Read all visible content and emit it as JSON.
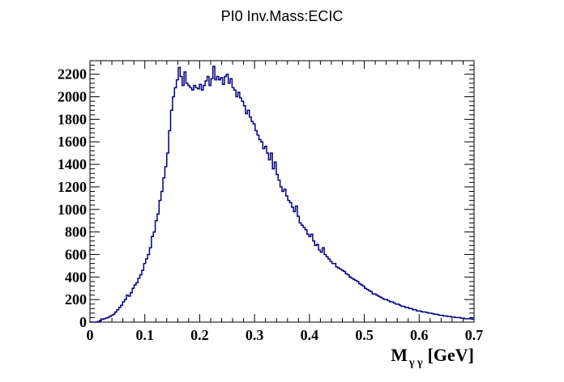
{
  "chart_data": {
    "type": "histogram",
    "title": "PI0 Inv.Mass:ECIC",
    "xlabel": "M_γ γ [GeV]",
    "xlabel_parts": {
      "main": "M",
      "sub": "γ γ",
      "unit": "[GeV]"
    },
    "ylabel": "",
    "xlim": [
      0,
      0.7
    ],
    "ylim": [
      0,
      2320
    ],
    "grid": false,
    "line_color": "#000080",
    "x_ticks": [
      0,
      0.1,
      0.2,
      0.3,
      0.4,
      0.5,
      0.6,
      0.7
    ],
    "x_tick_labels": [
      "0",
      "0.1",
      "0.2",
      "0.3",
      "0.4",
      "0.5",
      "0.6",
      "0.7"
    ],
    "y_ticks": [
      0,
      200,
      400,
      600,
      800,
      1000,
      1200,
      1400,
      1600,
      1800,
      2000,
      2200
    ],
    "y_tick_labels": [
      "0",
      "200",
      "400",
      "600",
      "800",
      "1000",
      "1200",
      "1400",
      "1600",
      "1800",
      "2000",
      "2200"
    ],
    "bin_width": 0.0035,
    "bin_start": 0,
    "values": [
      0,
      0,
      0,
      0,
      5,
      15,
      25,
      30,
      35,
      40,
      50,
      60,
      70,
      90,
      110,
      130,
      150,
      180,
      200,
      240,
      230,
      260,
      300,
      330,
      350,
      390,
      420,
      460,
      520,
      560,
      600,
      660,
      760,
      800,
      900,
      960,
      1080,
      1160,
      1280,
      1380,
      1500,
      1700,
      1880,
      2000,
      2080,
      2150,
      2260,
      2180,
      2100,
      2220,
      2120,
      2100,
      2080,
      2060,
      2100,
      2080,
      2070,
      2110,
      2060,
      2100,
      2140,
      2180,
      2100,
      2160,
      2270,
      2150,
      2180,
      2150,
      2170,
      2110,
      2180,
      2200,
      2120,
      2160,
      2080,
      2060,
      2000,
      2040,
      1990,
      1960,
      1920,
      1850,
      1880,
      1820,
      1780,
      1760,
      1700,
      1660,
      1620,
      1600,
      1540,
      1560,
      1500,
      1440,
      1500,
      1360,
      1420,
      1310,
      1260,
      1200,
      1160,
      1180,
      1120,
      1080,
      1060,
      1020,
      980,
      1030,
      940,
      880,
      860,
      840,
      820,
      780,
      760,
      780,
      720,
      680,
      690,
      640,
      620,
      660,
      600,
      580,
      560,
      540,
      520,
      520,
      490,
      480,
      470,
      460,
      450,
      430,
      420,
      400,
      390,
      380,
      370,
      360,
      340,
      330,
      320,
      300,
      290,
      280,
      270,
      250,
      250,
      240,
      230,
      220,
      210,
      200,
      200,
      190,
      180,
      180,
      170,
      160,
      160,
      150,
      140,
      140,
      130,
      130,
      120,
      120,
      110,
      110,
      100,
      100,
      95,
      90,
      90,
      85,
      80,
      80,
      75,
      70,
      70,
      65,
      60,
      60,
      55,
      55,
      50,
      50,
      45,
      45,
      40,
      40,
      40,
      35,
      35,
      30,
      30,
      30,
      30,
      25,
      25,
      25,
      20,
      20,
      20,
      20
    ]
  }
}
